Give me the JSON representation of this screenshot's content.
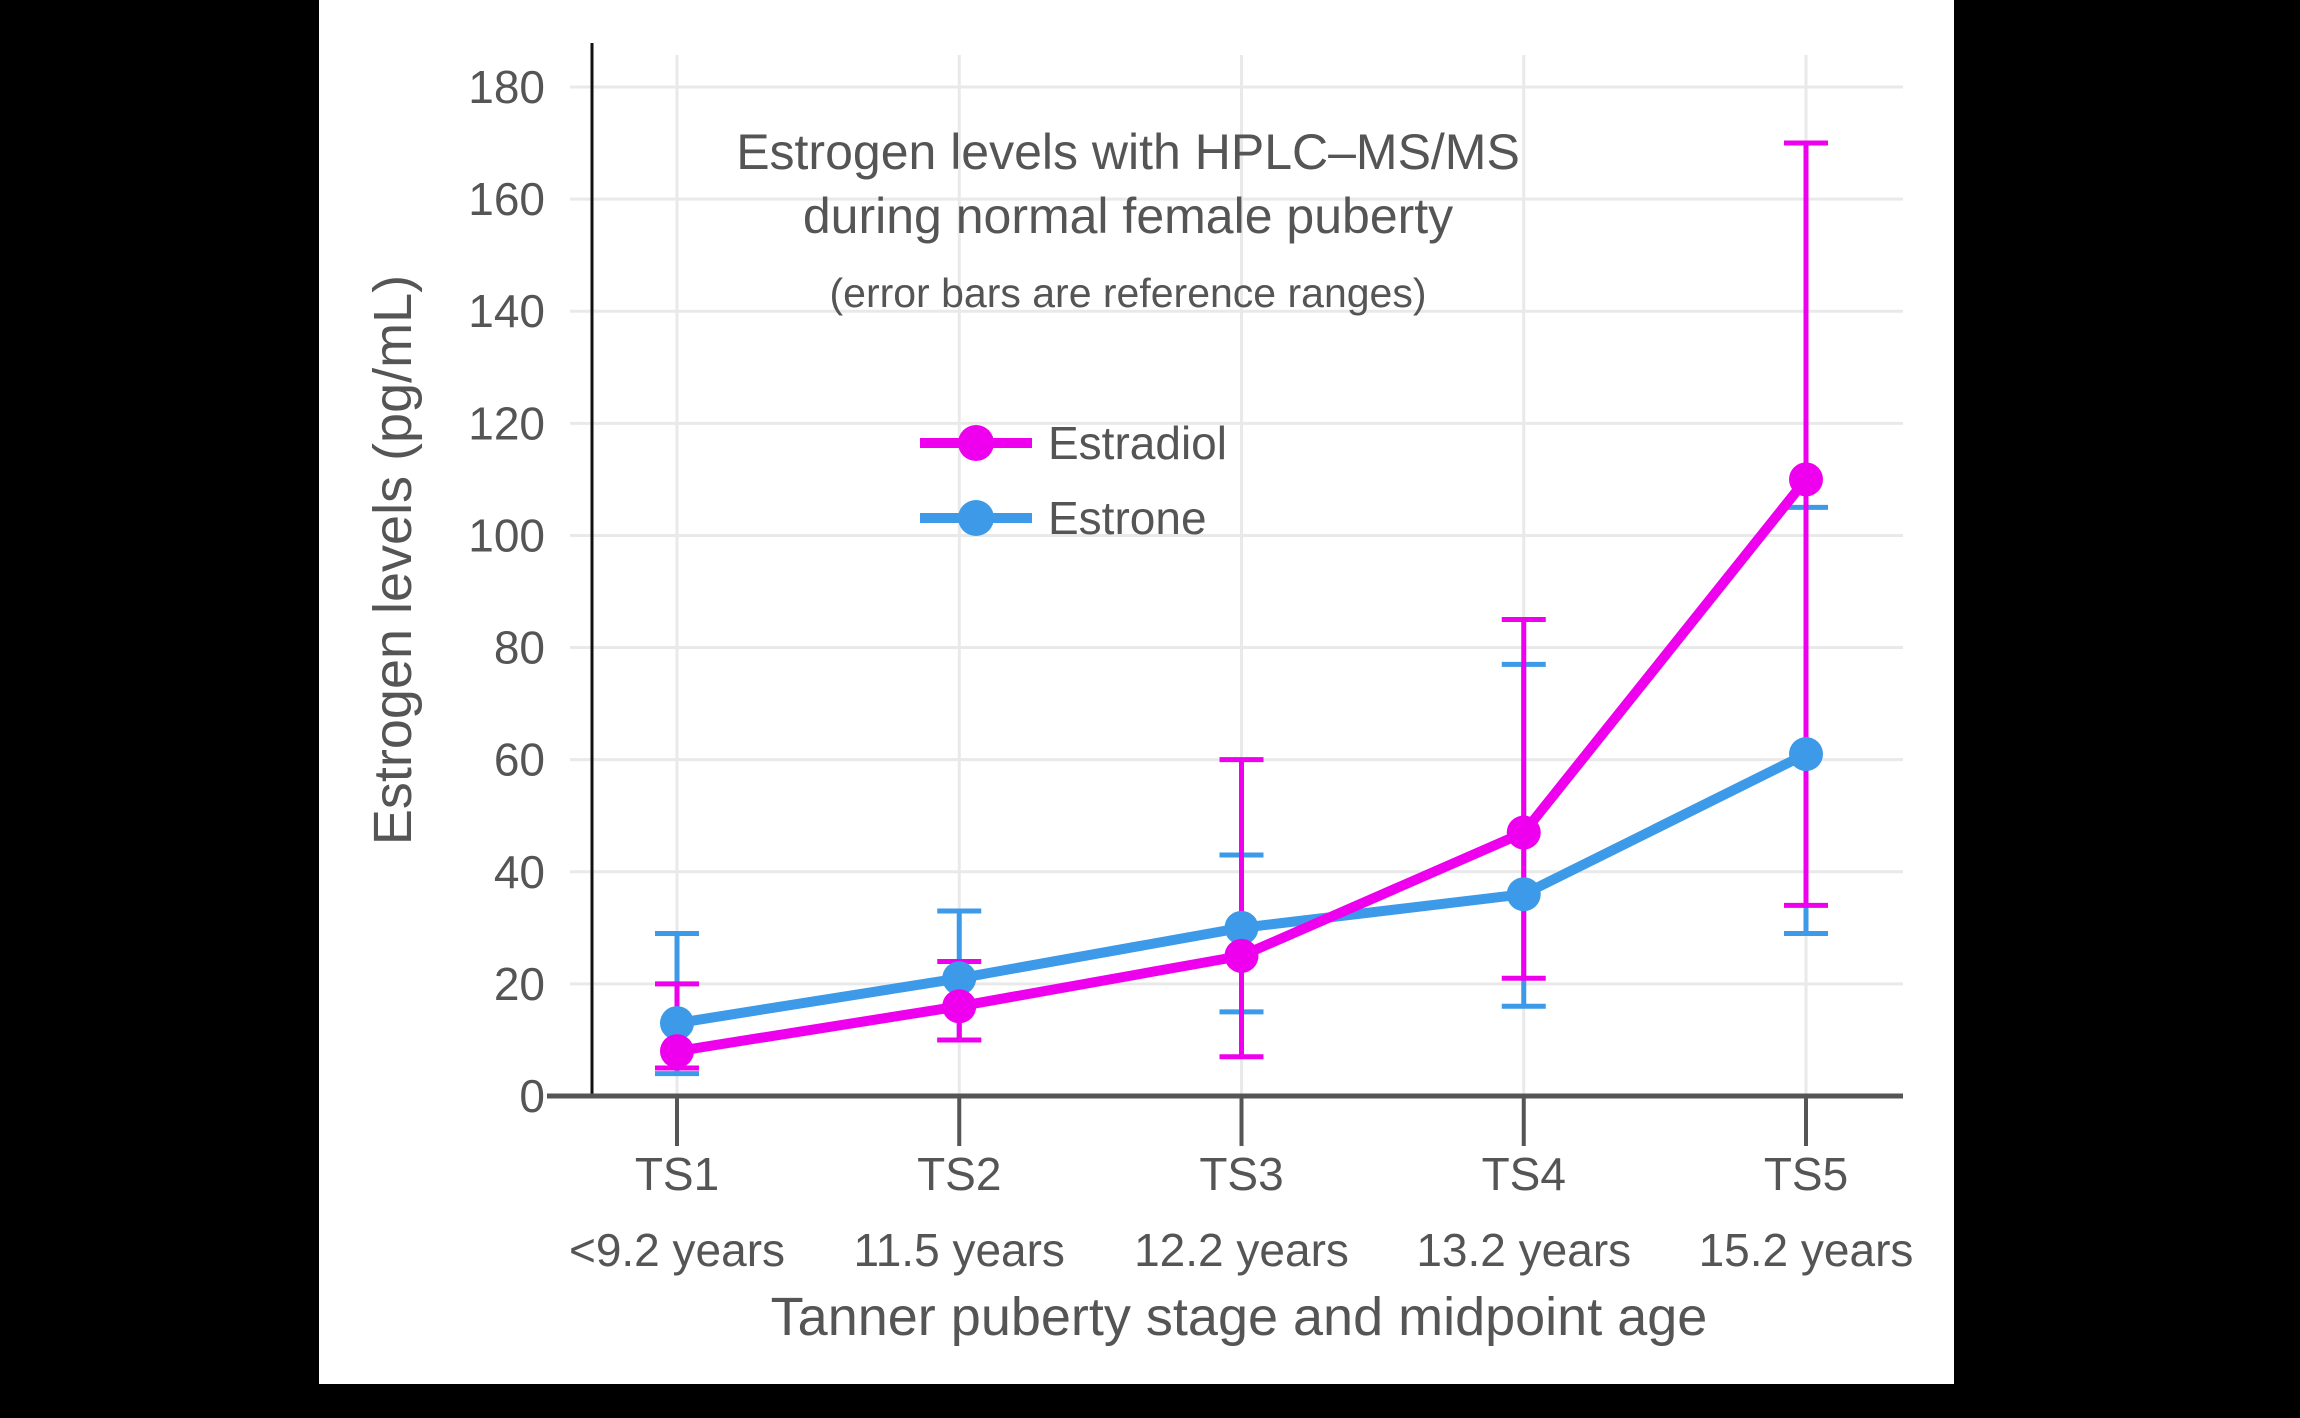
{
  "colors": {
    "background": "#000000",
    "panel": "#ffffff",
    "grid": "#e9e9e9",
    "y_axis": "#111111",
    "x_axis": "#555555",
    "text": "#555555",
    "estradiol": "#ee00ee",
    "estrone": "#3d9ae8"
  },
  "chart_data": {
    "type": "line",
    "title_lines": [
      "Estrogen levels with HPLC–MS/MS",
      "during normal female puberty"
    ],
    "subtitle": "(error bars are reference ranges)",
    "xlabel": "Tanner puberty stage and midpoint age",
    "ylabel": "Estrogen levels (pg/mL)",
    "categories": [
      "TS1",
      "TS2",
      "TS3",
      "TS4",
      "TS5"
    ],
    "category_ages": [
      "<9.2 years",
      "11.5 years",
      "12.2 years",
      "13.2 years",
      "15.2 years"
    ],
    "ylim": [
      0,
      180
    ],
    "yticks": [
      0,
      20,
      40,
      60,
      80,
      100,
      120,
      140,
      160,
      180
    ],
    "grid": true,
    "legend_position": "inside-upper-left",
    "error_bar_meaning": "reference ranges",
    "series": [
      {
        "name": "Estradiol",
        "color": "#ee00ee",
        "values": [
          8,
          16,
          25,
          47,
          110
        ],
        "range_low": [
          5,
          10,
          7,
          21,
          34
        ],
        "range_high": [
          20,
          24,
          60,
          85,
          170
        ]
      },
      {
        "name": "Estrone",
        "color": "#3d9ae8",
        "values": [
          13,
          21,
          30,
          36,
          61
        ],
        "range_low": [
          4,
          10,
          15,
          16,
          29
        ],
        "range_high": [
          29,
          33,
          43,
          77,
          105
        ]
      }
    ]
  }
}
